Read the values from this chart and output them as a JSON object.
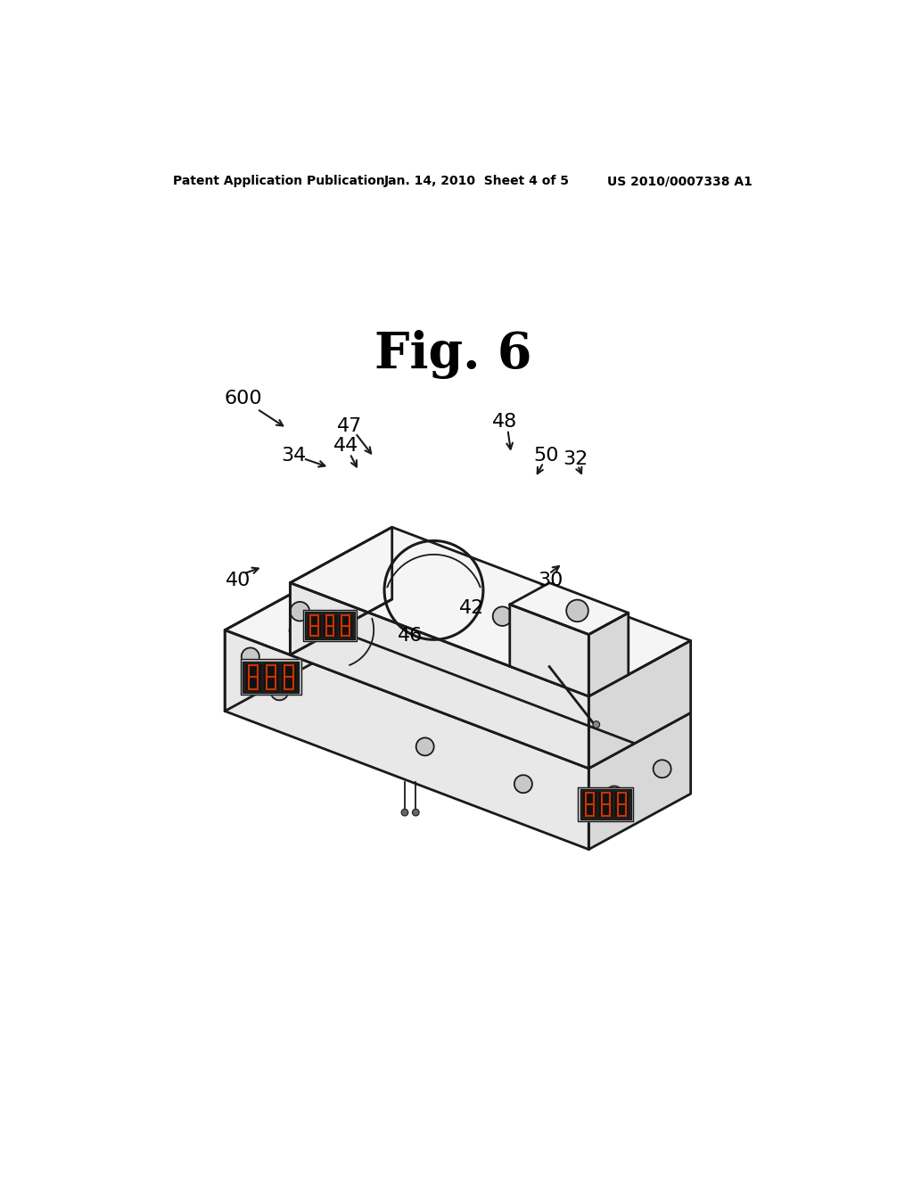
{
  "patent_header_left": "Patent Application Publication",
  "patent_header_middle": "Jan. 14, 2010  Sheet 4 of 5",
  "patent_header_right": "US 2010/0007338 A1",
  "fig_label": "Fig. 6",
  "bg_color": "#ffffff",
  "line_color": "#1a1a1a",
  "fill_top": "#f5f5f5",
  "fill_front": "#e8e8e8",
  "fill_right": "#d8d8d8",
  "fill_dark": "#c8c8c8"
}
